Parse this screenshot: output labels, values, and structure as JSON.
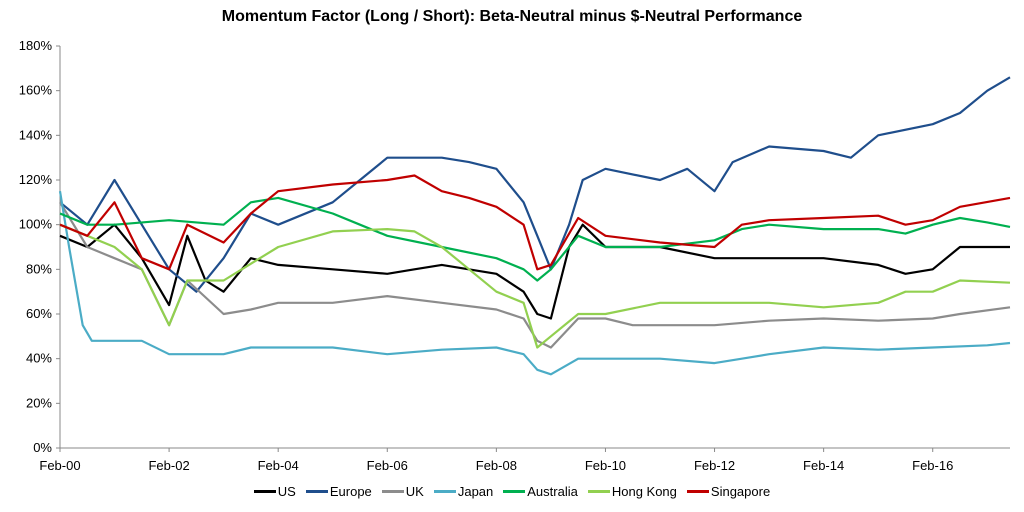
{
  "chart_data": {
    "type": "line",
    "title": "Momentum Factor (Long / Short): Beta-Neutral minus $-Neutral Performance",
    "xlabel": "",
    "ylabel": "",
    "ylim": [
      0,
      180
    ],
    "yticks": [
      "0%",
      "20%",
      "40%",
      "60%",
      "80%",
      "100%",
      "120%",
      "140%",
      "160%",
      "180%"
    ],
    "xticks": [
      "Feb-00",
      "Feb-02",
      "Feb-04",
      "Feb-06",
      "Feb-08",
      "Feb-10",
      "Feb-12",
      "Feb-14",
      "Feb-16"
    ],
    "xlim": [
      "2000-02",
      "2017-07"
    ],
    "grid": false,
    "legend_placement": "bottom",
    "series": [
      {
        "name": "US",
        "color": "#000000",
        "points": [
          [
            "2000-02",
            95
          ],
          [
            "2000-08",
            90
          ],
          [
            "2001-02",
            100
          ],
          [
            "2001-08",
            85
          ],
          [
            "2002-02",
            64
          ],
          [
            "2002-06",
            95
          ],
          [
            "2002-10",
            75
          ],
          [
            "2003-02",
            70
          ],
          [
            "2003-08",
            85
          ],
          [
            "2004-02",
            82
          ],
          [
            "2005-02",
            80
          ],
          [
            "2006-02",
            78
          ],
          [
            "2006-08",
            80
          ],
          [
            "2007-02",
            82
          ],
          [
            "2008-02",
            78
          ],
          [
            "2008-08",
            70
          ],
          [
            "2008-11",
            60
          ],
          [
            "2009-02",
            58
          ],
          [
            "2009-06",
            90
          ],
          [
            "2009-09",
            100
          ],
          [
            "2010-02",
            90
          ],
          [
            "2011-02",
            90
          ],
          [
            "2012-02",
            85
          ],
          [
            "2013-02",
            85
          ],
          [
            "2014-02",
            85
          ],
          [
            "2015-02",
            82
          ],
          [
            "2015-08",
            78
          ],
          [
            "2016-02",
            80
          ],
          [
            "2016-08",
            90
          ],
          [
            "2017-07",
            90
          ]
        ]
      },
      {
        "name": "Europe",
        "color": "#1f4e8c",
        "points": [
          [
            "2000-02",
            110
          ],
          [
            "2000-08",
            100
          ],
          [
            "2001-02",
            120
          ],
          [
            "2001-08",
            100
          ],
          [
            "2002-02",
            80
          ],
          [
            "2002-08",
            70
          ],
          [
            "2003-02",
            85
          ],
          [
            "2003-08",
            105
          ],
          [
            "2004-02",
            100
          ],
          [
            "2005-02",
            110
          ],
          [
            "2005-08",
            120
          ],
          [
            "2006-02",
            130
          ],
          [
            "2007-02",
            130
          ],
          [
            "2007-08",
            128
          ],
          [
            "2008-02",
            125
          ],
          [
            "2008-08",
            110
          ],
          [
            "2008-11",
            95
          ],
          [
            "2009-02",
            80
          ],
          [
            "2009-06",
            100
          ],
          [
            "2009-09",
            120
          ],
          [
            "2010-02",
            125
          ],
          [
            "2011-02",
            120
          ],
          [
            "2011-08",
            125
          ],
          [
            "2012-02",
            115
          ],
          [
            "2012-06",
            128
          ],
          [
            "2013-02",
            135
          ],
          [
            "2014-02",
            133
          ],
          [
            "2014-08",
            130
          ],
          [
            "2015-02",
            140
          ],
          [
            "2016-02",
            145
          ],
          [
            "2016-08",
            150
          ],
          [
            "2017-02",
            160
          ],
          [
            "2017-07",
            166
          ]
        ]
      },
      {
        "name": "UK",
        "color": "#8c8c8c",
        "points": [
          [
            "2000-02",
            110
          ],
          [
            "2000-08",
            90
          ],
          [
            "2001-02",
            85
          ],
          [
            "2001-08",
            80
          ],
          [
            "2002-02",
            55
          ],
          [
            "2002-06",
            75
          ],
          [
            "2003-02",
            60
          ],
          [
            "2003-08",
            62
          ],
          [
            "2004-02",
            65
          ],
          [
            "2005-02",
            65
          ],
          [
            "2006-02",
            68
          ],
          [
            "2007-02",
            65
          ],
          [
            "2008-02",
            62
          ],
          [
            "2008-08",
            58
          ],
          [
            "2008-11",
            48
          ],
          [
            "2009-02",
            45
          ],
          [
            "2009-08",
            58
          ],
          [
            "2010-02",
            58
          ],
          [
            "2010-08",
            55
          ],
          [
            "2012-02",
            55
          ],
          [
            "2013-02",
            57
          ],
          [
            "2014-02",
            58
          ],
          [
            "2015-02",
            57
          ],
          [
            "2016-02",
            58
          ],
          [
            "2016-08",
            60
          ],
          [
            "2017-07",
            63
          ]
        ]
      },
      {
        "name": "Japan",
        "color": "#4bacc6",
        "points": [
          [
            "2000-02",
            115
          ],
          [
            "2000-04",
            90
          ],
          [
            "2000-07",
            55
          ],
          [
            "2000-09",
            48
          ],
          [
            "2001-02",
            48
          ],
          [
            "2001-08",
            48
          ],
          [
            "2002-02",
            42
          ],
          [
            "2003-02",
            42
          ],
          [
            "2003-08",
            45
          ],
          [
            "2004-02",
            45
          ],
          [
            "2005-02",
            45
          ],
          [
            "2006-02",
            42
          ],
          [
            "2007-02",
            44
          ],
          [
            "2008-02",
            45
          ],
          [
            "2008-08",
            42
          ],
          [
            "2008-11",
            35
          ],
          [
            "2009-02",
            33
          ],
          [
            "2009-08",
            40
          ],
          [
            "2010-02",
            40
          ],
          [
            "2011-02",
            40
          ],
          [
            "2012-02",
            38
          ],
          [
            "2012-08",
            40
          ],
          [
            "2013-02",
            42
          ],
          [
            "2014-02",
            45
          ],
          [
            "2015-02",
            44
          ],
          [
            "2016-02",
            45
          ],
          [
            "2017-02",
            46
          ],
          [
            "2017-07",
            47
          ]
        ]
      },
      {
        "name": "Australia",
        "color": "#00b050",
        "points": [
          [
            "2000-02",
            105
          ],
          [
            "2000-08",
            100
          ],
          [
            "2001-02",
            100
          ],
          [
            "2002-02",
            102
          ],
          [
            "2003-02",
            100
          ],
          [
            "2003-08",
            110
          ],
          [
            "2004-02",
            112
          ],
          [
            "2005-02",
            105
          ],
          [
            "2005-08",
            100
          ],
          [
            "2006-02",
            95
          ],
          [
            "2007-02",
            90
          ],
          [
            "2008-02",
            85
          ],
          [
            "2008-08",
            80
          ],
          [
            "2008-11",
            75
          ],
          [
            "2009-02",
            80
          ],
          [
            "2009-08",
            95
          ],
          [
            "2010-02",
            90
          ],
          [
            "2011-02",
            90
          ],
          [
            "2012-02",
            93
          ],
          [
            "2012-08",
            98
          ],
          [
            "2013-02",
            100
          ],
          [
            "2014-02",
            98
          ],
          [
            "2015-02",
            98
          ],
          [
            "2015-08",
            96
          ],
          [
            "2016-02",
            100
          ],
          [
            "2016-08",
            103
          ],
          [
            "2017-02",
            101
          ],
          [
            "2017-07",
            99
          ]
        ]
      },
      {
        "name": "Hong Kong",
        "color": "#92d050",
        "points": [
          [
            "2000-02",
            100
          ],
          [
            "2000-08",
            95
          ],
          [
            "2001-02",
            90
          ],
          [
            "2001-08",
            80
          ],
          [
            "2002-02",
            55
          ],
          [
            "2002-06",
            75
          ],
          [
            "2003-02",
            75
          ],
          [
            "2003-06",
            80
          ],
          [
            "2004-02",
            90
          ],
          [
            "2005-02",
            97
          ],
          [
            "2006-02",
            98
          ],
          [
            "2006-08",
            97
          ],
          [
            "2007-02",
            90
          ],
          [
            "2007-08",
            80
          ],
          [
            "2008-02",
            70
          ],
          [
            "2008-08",
            65
          ],
          [
            "2008-11",
            45
          ],
          [
            "2009-02",
            50
          ],
          [
            "2009-08",
            60
          ],
          [
            "2010-02",
            60
          ],
          [
            "2011-02",
            65
          ],
          [
            "2012-02",
            65
          ],
          [
            "2013-02",
            65
          ],
          [
            "2014-02",
            63
          ],
          [
            "2015-02",
            65
          ],
          [
            "2015-08",
            70
          ],
          [
            "2016-02",
            70
          ],
          [
            "2016-08",
            75
          ],
          [
            "2017-07",
            74
          ]
        ]
      },
      {
        "name": "Singapore",
        "color": "#c00000",
        "points": [
          [
            "2000-02",
            100
          ],
          [
            "2000-08",
            95
          ],
          [
            "2001-02",
            110
          ],
          [
            "2001-08",
            85
          ],
          [
            "2002-02",
            80
          ],
          [
            "2002-06",
            100
          ],
          [
            "2003-02",
            92
          ],
          [
            "2003-08",
            105
          ],
          [
            "2004-02",
            115
          ],
          [
            "2005-02",
            118
          ],
          [
            "2006-02",
            120
          ],
          [
            "2006-08",
            122
          ],
          [
            "2007-02",
            115
          ],
          [
            "2007-08",
            112
          ],
          [
            "2008-02",
            108
          ],
          [
            "2008-08",
            100
          ],
          [
            "2008-11",
            80
          ],
          [
            "2009-02",
            82
          ],
          [
            "2009-08",
            103
          ],
          [
            "2010-02",
            95
          ],
          [
            "2011-02",
            92
          ],
          [
            "2012-02",
            90
          ],
          [
            "2012-08",
            100
          ],
          [
            "2013-02",
            102
          ],
          [
            "2014-02",
            103
          ],
          [
            "2015-02",
            104
          ],
          [
            "2015-08",
            100
          ],
          [
            "2016-02",
            102
          ],
          [
            "2016-08",
            108
          ],
          [
            "2017-07",
            112
          ]
        ]
      }
    ]
  }
}
